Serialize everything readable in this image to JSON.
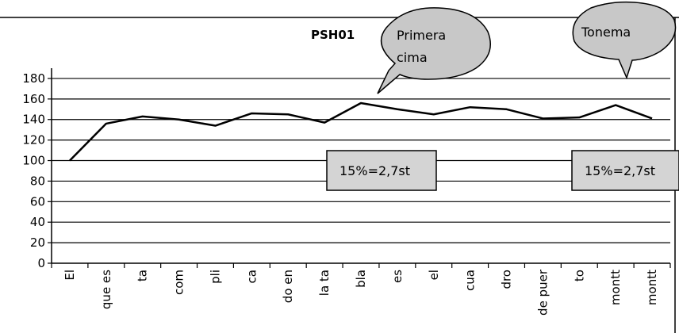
{
  "chart_data": {
    "type": "line",
    "title": "PSH01",
    "categories": [
      "El",
      "que es",
      "ta",
      "com",
      "pli",
      "ca",
      "do en",
      "la ta",
      "bla",
      "es",
      "el",
      "cua",
      "dro",
      "de puer",
      "to",
      "montt",
      "montt"
    ],
    "series": [
      {
        "values": [
          100,
          136,
          143,
          140,
          134,
          146,
          145,
          137,
          156,
          150,
          145,
          152,
          150,
          141,
          142,
          154,
          141
        ]
      }
    ],
    "yticks": [
      0,
      20,
      40,
      60,
      80,
      100,
      120,
      140,
      160,
      180
    ],
    "ylim": [
      0,
      190
    ],
    "grid": true,
    "legend": "none"
  },
  "annotations": {
    "callout_primera": {
      "line1": "Primera",
      "line2": "cima"
    },
    "callout_tonema": {
      "text": "Tonema"
    },
    "box_left": {
      "text": "15%=2,7st"
    },
    "box_right": {
      "text": "15%=2,7st"
    }
  },
  "colors": {
    "callout_fill": "#c8c8c8",
    "box_fill": "#d4d4d4",
    "line": "#000000",
    "grid": "#000000"
  }
}
